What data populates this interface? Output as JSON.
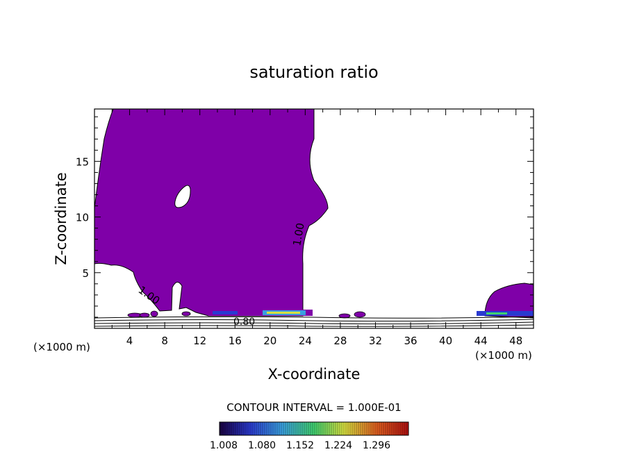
{
  "chart_data": {
    "type": "heatmap",
    "title": "saturation ratio",
    "xlabel": "X-coordinate",
    "ylabel": "Z-coordinate",
    "x_unit": "(×1000 m)",
    "x_unit_right": "(×1000 m)",
    "xlim": [
      0,
      50
    ],
    "ylim": [
      0,
      19.7
    ],
    "x_ticks": [
      4,
      8,
      12,
      16,
      20,
      24,
      28,
      32,
      36,
      40,
      44,
      48
    ],
    "y_ticks": [
      5,
      10,
      15
    ],
    "contour_labels": [
      "1.00",
      "1.00",
      "0.80"
    ],
    "contour_interval_text": "CONTOUR INTERVAL = 1.000E-01",
    "colorbar": {
      "labels": [
        "1.008",
        "1.080",
        "1.152",
        "1.224",
        "1.296"
      ],
      "colors": [
        "#1a0040",
        "#2a3ad0",
        "#3aa0e0",
        "#40d070",
        "#d8e040",
        "#e06020",
        "#b01010"
      ],
      "fill_color": "#7f00a8"
    }
  }
}
